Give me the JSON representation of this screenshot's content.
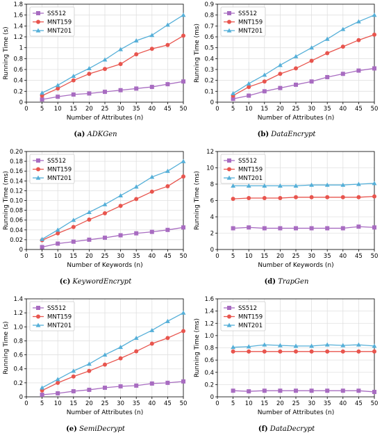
{
  "colors": {
    "SS512": "#a86cc1",
    "MNT159": "#e8554e",
    "MNT201": "#55afd8",
    "grid": "#e0e0e0",
    "axis": "#000000"
  },
  "captions": [
    {
      "letter": "(a)",
      "name": "ADKGen"
    },
    {
      "letter": "(b)",
      "name": "DataEncrypt"
    },
    {
      "letter": "(c)",
      "name": "KeywordEncrypt"
    },
    {
      "letter": "(d)",
      "name": "TrapGen"
    },
    {
      "letter": "(e)",
      "name": "SemiDecrypt"
    },
    {
      "letter": "(f)",
      "name": "DataDecrypt"
    }
  ],
  "chart_data": [
    {
      "type": "line",
      "title": "",
      "xlabel": "Number of Attributes (n)",
      "ylabel": "Running Time (s)",
      "x": [
        5,
        10,
        15,
        20,
        25,
        30,
        35,
        40,
        45,
        50
      ],
      "xlim": [
        0,
        50
      ],
      "xticks": [
        0,
        5,
        10,
        15,
        20,
        25,
        30,
        35,
        40,
        45,
        50
      ],
      "ylim": [
        0,
        1.8
      ],
      "yticks": [
        "0",
        "0.2",
        "0.4",
        "0.6",
        "0.8",
        "1",
        "1.2",
        "1.4",
        "1.6",
        "1.8"
      ],
      "grid": true,
      "legend": "top-left",
      "series": [
        {
          "name": "SS512",
          "marker": "square",
          "values": [
            0.05,
            0.1,
            0.14,
            0.16,
            0.19,
            0.22,
            0.25,
            0.28,
            0.33,
            0.38
          ]
        },
        {
          "name": "MNT159",
          "marker": "circle",
          "values": [
            0.12,
            0.25,
            0.4,
            0.52,
            0.61,
            0.7,
            0.88,
            0.98,
            1.05,
            1.22
          ]
        },
        {
          "name": "MNT201",
          "marker": "triangle",
          "values": [
            0.17,
            0.31,
            0.48,
            0.62,
            0.78,
            0.97,
            1.13,
            1.23,
            1.42,
            1.6
          ]
        }
      ]
    },
    {
      "type": "line",
      "title": "",
      "xlabel": "Number of Attributes (n)",
      "ylabel": "Running Time (ms)",
      "x": [
        5,
        10,
        15,
        20,
        25,
        30,
        35,
        40,
        45,
        50
      ],
      "xlim": [
        0,
        50
      ],
      "xticks": [
        0,
        5,
        10,
        15,
        20,
        25,
        30,
        35,
        40,
        45,
        50
      ],
      "ylim": [
        0,
        0.9
      ],
      "yticks": [
        "0",
        "0.1",
        "0.2",
        "0.3",
        "0.4",
        "0.5",
        "0.6",
        "0.7",
        "0.8",
        "0.9"
      ],
      "grid": true,
      "legend": "top-left",
      "series": [
        {
          "name": "SS512",
          "marker": "square",
          "values": [
            0.03,
            0.06,
            0.1,
            0.13,
            0.16,
            0.19,
            0.23,
            0.26,
            0.29,
            0.31
          ]
        },
        {
          "name": "MNT159",
          "marker": "circle",
          "values": [
            0.06,
            0.14,
            0.19,
            0.26,
            0.31,
            0.38,
            0.45,
            0.51,
            0.57,
            0.62
          ]
        },
        {
          "name": "MNT201",
          "marker": "triangle",
          "values": [
            0.08,
            0.17,
            0.25,
            0.34,
            0.42,
            0.5,
            0.58,
            0.67,
            0.74,
            0.8
          ]
        }
      ]
    },
    {
      "type": "line",
      "title": "",
      "xlabel": "Number of Keywords (n)",
      "ylabel": "Running Time (ms)",
      "x": [
        5,
        10,
        15,
        20,
        25,
        30,
        35,
        40,
        45,
        50
      ],
      "xlim": [
        0,
        50
      ],
      "xticks": [
        0,
        5,
        10,
        15,
        20,
        25,
        30,
        35,
        40,
        45,
        50
      ],
      "ylim": [
        0,
        0.2
      ],
      "yticks": [
        "0",
        "0.02",
        "0.04",
        "0.06",
        "0.08",
        "0.10",
        "0.12",
        "0.14",
        "0.16",
        "0.18",
        "0.20"
      ],
      "grid": true,
      "legend": "top-left",
      "series": [
        {
          "name": "SS512",
          "marker": "square",
          "values": [
            0.005,
            0.012,
            0.016,
            0.02,
            0.024,
            0.029,
            0.033,
            0.036,
            0.04,
            0.045
          ]
        },
        {
          "name": "MNT159",
          "marker": "circle",
          "values": [
            0.019,
            0.033,
            0.046,
            0.061,
            0.074,
            0.089,
            0.103,
            0.118,
            0.129,
            0.149
          ]
        },
        {
          "name": "MNT201",
          "marker": "triangle",
          "values": [
            0.021,
            0.04,
            0.06,
            0.076,
            0.092,
            0.11,
            0.128,
            0.148,
            0.16,
            0.18
          ]
        }
      ]
    },
    {
      "type": "line",
      "title": "",
      "xlabel": "Number of Keywords (n)",
      "ylabel": "Running Time (ms)",
      "x": [
        5,
        10,
        15,
        20,
        25,
        30,
        35,
        40,
        45,
        50
      ],
      "xlim": [
        0,
        50
      ],
      "xticks": [
        0,
        5,
        10,
        15,
        20,
        25,
        30,
        35,
        40,
        45,
        50
      ],
      "ylim": [
        0,
        12
      ],
      "yticks": [
        "0",
        "2",
        "4",
        "6",
        "8",
        "10",
        "12"
      ],
      "grid": true,
      "legend": "top-left",
      "series": [
        {
          "name": "SS512",
          "marker": "square",
          "values": [
            2.6,
            2.7,
            2.6,
            2.6,
            2.6,
            2.6,
            2.6,
            2.6,
            2.8,
            2.7
          ]
        },
        {
          "name": "MNT159",
          "marker": "circle",
          "values": [
            6.2,
            6.3,
            6.3,
            6.3,
            6.4,
            6.4,
            6.4,
            6.4,
            6.4,
            6.5
          ]
        },
        {
          "name": "MNT201",
          "marker": "triangle",
          "values": [
            7.8,
            7.8,
            7.8,
            7.8,
            7.8,
            7.9,
            7.9,
            7.9,
            8.0,
            8.1
          ]
        }
      ]
    },
    {
      "type": "line",
      "title": "",
      "xlabel": "Number of Attributes (n)",
      "ylabel": "Running Time (s)",
      "x": [
        5,
        10,
        15,
        20,
        25,
        30,
        35,
        40,
        45,
        50
      ],
      "xlim": [
        0,
        50
      ],
      "xticks": [
        0,
        5,
        10,
        15,
        20,
        25,
        30,
        35,
        40,
        45,
        50
      ],
      "ylim": [
        0,
        1.4
      ],
      "yticks": [
        "0",
        "0.2",
        "0.4",
        "0.6",
        "0.8",
        "1.0",
        "1.2",
        "1.4"
      ],
      "grid": true,
      "legend": "top-left",
      "series": [
        {
          "name": "SS512",
          "marker": "square",
          "values": [
            0.03,
            0.05,
            0.08,
            0.1,
            0.13,
            0.15,
            0.16,
            0.19,
            0.2,
            0.22
          ]
        },
        {
          "name": "MNT159",
          "marker": "circle",
          "values": [
            0.09,
            0.2,
            0.29,
            0.37,
            0.46,
            0.55,
            0.65,
            0.76,
            0.84,
            0.94
          ]
        },
        {
          "name": "MNT201",
          "marker": "triangle",
          "values": [
            0.13,
            0.25,
            0.37,
            0.47,
            0.6,
            0.71,
            0.84,
            0.95,
            1.08,
            1.2
          ]
        }
      ]
    },
    {
      "type": "line",
      "title": "",
      "xlabel": "Number of Attributes (n)",
      "ylabel": "Running Time (ms)",
      "x": [
        5,
        10,
        15,
        20,
        25,
        30,
        35,
        40,
        45,
        50
      ],
      "xlim": [
        0,
        50
      ],
      "xticks": [
        0,
        5,
        10,
        15,
        20,
        25,
        30,
        35,
        40,
        45,
        50
      ],
      "ylim": [
        0,
        1.6
      ],
      "yticks": [
        "0",
        "0.2",
        "0.4",
        "0.6",
        "0.8",
        "1.0",
        "1.2",
        "1.4",
        "1.6"
      ],
      "grid": true,
      "legend": "top-left",
      "series": [
        {
          "name": "SS512",
          "marker": "square",
          "values": [
            0.1,
            0.09,
            0.1,
            0.1,
            0.1,
            0.1,
            0.1,
            0.1,
            0.1,
            0.08
          ]
        },
        {
          "name": "MNT159",
          "marker": "circle",
          "values": [
            0.74,
            0.74,
            0.74,
            0.74,
            0.74,
            0.74,
            0.74,
            0.74,
            0.74,
            0.74
          ]
        },
        {
          "name": "MNT201",
          "marker": "triangle",
          "values": [
            0.81,
            0.82,
            0.85,
            0.84,
            0.83,
            0.83,
            0.85,
            0.84,
            0.85,
            0.83
          ]
        }
      ]
    }
  ]
}
